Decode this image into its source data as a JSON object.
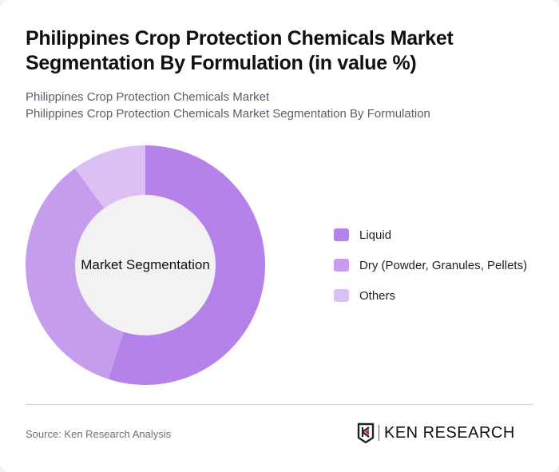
{
  "header": {
    "title": "Philippines Crop Protection Chemicals Market Segmentation By Formulation (in value %)",
    "subtitle_line1": "Philippines Crop Protection Chemicals Market",
    "subtitle_line2": "Philippines Crop Protection Chemicals Market Segmentation By Formulation"
  },
  "chart_data": {
    "type": "pie",
    "variant": "donut",
    "title": "Philippines Crop Protection Chemicals Market Segmentation By Formulation (in value %)",
    "center_label": "Market Segmentation",
    "categories": [
      "Liquid",
      "Dry (Powder, Granules, Pellets)",
      "Others"
    ],
    "values": [
      55,
      35,
      10
    ],
    "colors": [
      "#b582ea",
      "#c69ced",
      "#dcc0f5"
    ],
    "legend_position": "right"
  },
  "legend": {
    "items": [
      {
        "label": "Liquid",
        "color": "#b582ea"
      },
      {
        "label": "Dry (Powder, Granules, Pellets)",
        "color": "#c69ced"
      },
      {
        "label": "Others",
        "color": "#dcc0f5"
      }
    ]
  },
  "footer": {
    "source": "Source: Ken Research Analysis",
    "logo_text": "KEN RESEARCH"
  },
  "colors": {
    "inner_circle": "#f2f2f2"
  }
}
